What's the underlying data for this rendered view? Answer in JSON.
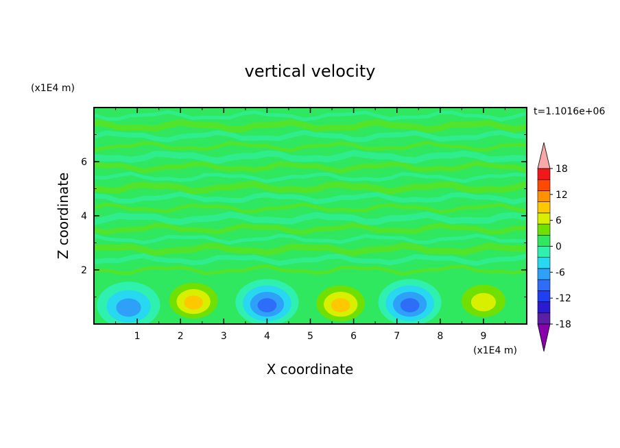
{
  "chart_data": {
    "type": "heatmap",
    "title": "vertical velocity",
    "xlabel": "X coordinate",
    "ylabel": "Z coordinate",
    "x_unit_label": "(x1E4 m)",
    "y_unit_label": "(x1E4 m)",
    "time_label": "t=1.1016e+06",
    "xlim": [
      0,
      10
    ],
    "ylim": [
      0,
      8
    ],
    "x_ticks": [
      "1",
      "2",
      "3",
      "4",
      "5",
      "6",
      "7",
      "8",
      "9"
    ],
    "y_ticks": [
      "2",
      "4",
      "6"
    ],
    "colorbar": {
      "ticks": [
        "18",
        "12",
        "6",
        "0",
        "-6",
        "-12",
        "-18"
      ],
      "levels": [
        -21,
        -18,
        -15,
        -12,
        -9,
        -6,
        -3,
        0,
        3,
        6,
        9,
        12,
        15,
        18,
        21
      ],
      "colors": [
        "#8800aa",
        "#5a1fa6",
        "#2a1ad0",
        "#1f3ff0",
        "#2d6df8",
        "#2fa0f8",
        "#28d8f0",
        "#30f0b0",
        "#30e860",
        "#70e000",
        "#d8f000",
        "#ffc800",
        "#ff9000",
        "#ff4800",
        "#f01818",
        "#f8a8a8"
      ],
      "extend": "both"
    },
    "cells": [
      {
        "x": 0.8,
        "z": 0.7,
        "w": -11
      },
      {
        "x": 2.3,
        "z": 0.9,
        "w": 12
      },
      {
        "x": 4.0,
        "z": 0.8,
        "w": -14
      },
      {
        "x": 5.7,
        "z": 0.8,
        "w": 12
      },
      {
        "x": 7.3,
        "z": 0.8,
        "w": -13
      },
      {
        "x": 9.0,
        "z": 0.9,
        "w": 11
      }
    ]
  }
}
